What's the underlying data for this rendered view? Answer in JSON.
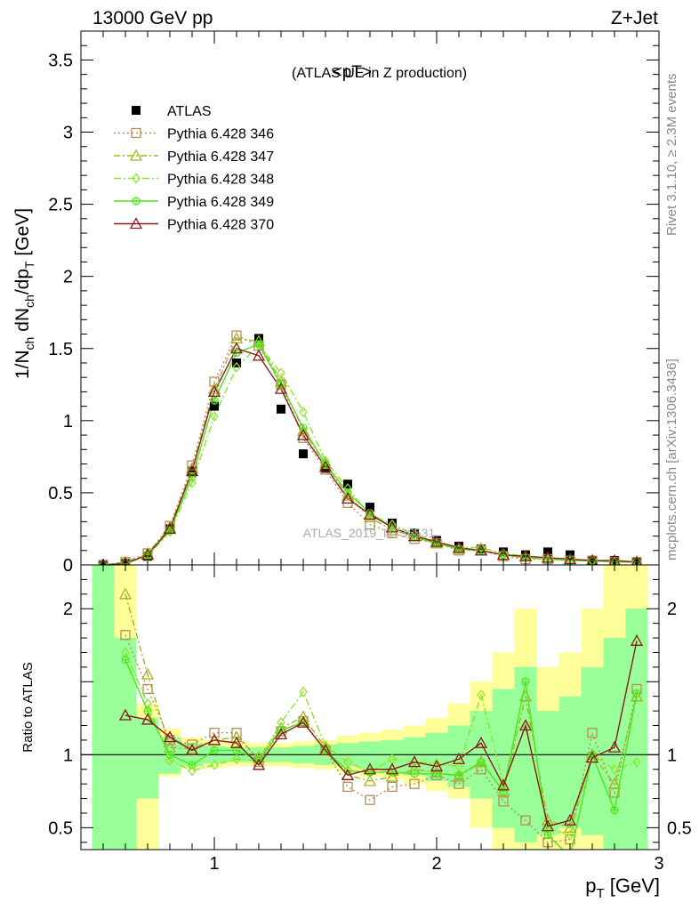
{
  "header": {
    "left": "13000 GeV pp",
    "right": "Z+Jet"
  },
  "side_labels": {
    "rivet": "Rivet 3.1.10, ≥ 2.3M events",
    "mcplots": "mcplots.cern.ch [arXiv:1306.3436]"
  },
  "watermark": "ATLAS_2019_I1736531",
  "chart_data": [
    {
      "type": "line",
      "title": "<pT>",
      "subtitle": "(ATLAS UE in Z production)",
      "xlabel": "p_T [GeV]",
      "ylabel": "1/N_ch dN_ch/dp_T [GeV]",
      "xlim": [
        0.4,
        3.0
      ],
      "ylim": [
        0,
        3.7
      ],
      "xscale": "linear",
      "grid": false,
      "legend_position": "top-left",
      "x_ticks": [
        "1",
        "2",
        "3"
      ],
      "y_ticks": [
        "0",
        "0.5",
        "1",
        "1.5",
        "2",
        "2.5",
        "3",
        "3.5"
      ],
      "x": [
        0.5,
        0.6,
        0.7,
        0.8,
        0.9,
        1.0,
        1.1,
        1.2,
        1.3,
        1.4,
        1.5,
        1.6,
        1.7,
        1.8,
        1.9,
        2.0,
        2.1,
        2.2,
        2.3,
        2.4,
        2.5,
        2.6,
        2.7,
        2.8,
        2.9
      ],
      "series": [
        {
          "name": "ATLAS",
          "color": "#000000",
          "marker": "filled-square",
          "values": [
            0.0,
            0.01,
            0.06,
            0.25,
            0.65,
            1.1,
            1.4,
            1.57,
            1.08,
            0.77,
            0.67,
            0.56,
            0.4,
            0.29,
            0.22,
            0.17,
            0.13,
            0.11,
            0.09,
            0.07,
            0.09,
            0.07,
            0.03,
            0.03,
            0.02
          ]
        },
        {
          "name": "Pythia 6.428 346",
          "color": "#b38f59",
          "marker": "open-square",
          "dash": "2,3",
          "values": [
            0.0,
            0.02,
            0.08,
            0.27,
            0.69,
            1.27,
            1.59,
            1.52,
            1.25,
            0.88,
            0.66,
            0.43,
            0.28,
            0.22,
            0.18,
            0.15,
            0.1,
            0.1,
            0.06,
            0.04,
            0.04,
            0.03,
            0.03,
            0.02,
            0.02
          ]
        },
        {
          "name": "Pythia 6.428 347",
          "color": "#a3b327",
          "marker": "open-triangle",
          "dash": "7,3,2,3",
          "values": [
            0.0,
            0.02,
            0.08,
            0.26,
            0.67,
            1.22,
            1.57,
            1.55,
            1.27,
            0.93,
            0.7,
            0.48,
            0.33,
            0.24,
            0.2,
            0.15,
            0.11,
            0.1,
            0.07,
            0.06,
            0.05,
            0.04,
            0.03,
            0.02,
            0.02
          ]
        },
        {
          "name": "Pythia 6.428 348",
          "color": "#8be625",
          "marker": "open-diamond",
          "dash": "8,3,2,3",
          "values": [
            0.0,
            0.01,
            0.06,
            0.23,
            0.57,
            1.03,
            1.37,
            1.52,
            1.33,
            1.06,
            0.72,
            0.53,
            0.35,
            0.28,
            0.21,
            0.16,
            0.12,
            0.12,
            0.08,
            0.06,
            0.05,
            0.04,
            0.03,
            0.02,
            0.02
          ]
        },
        {
          "name": "Pythia 6.428 349",
          "color": "#4de619",
          "marker": "open-circle-cross",
          "dash": "",
          "values": [
            0.0,
            0.01,
            0.07,
            0.24,
            0.61,
            1.14,
            1.47,
            1.53,
            1.25,
            0.95,
            0.7,
            0.5,
            0.36,
            0.26,
            0.19,
            0.15,
            0.11,
            0.1,
            0.07,
            0.05,
            0.04,
            0.03,
            0.03,
            0.02,
            0.02
          ]
        },
        {
          "name": "Pythia 6.428 370",
          "color": "#8c1a1a",
          "marker": "open-triangle",
          "dash": "",
          "values": [
            0.0,
            0.01,
            0.07,
            0.25,
            0.65,
            1.2,
            1.5,
            1.45,
            1.22,
            0.9,
            0.68,
            0.46,
            0.35,
            0.26,
            0.2,
            0.16,
            0.12,
            0.1,
            0.07,
            0.06,
            0.05,
            0.04,
            0.03,
            0.03,
            0.02
          ]
        }
      ]
    },
    {
      "type": "line",
      "title": "",
      "xlabel": "p_T [GeV]",
      "ylabel": "Ratio to ATLAS",
      "xlim": [
        0.4,
        3.0
      ],
      "ylim": [
        0.35,
        2.3
      ],
      "reference_line": 1,
      "grid": false,
      "x_ticks": [
        "1",
        "2",
        "3"
      ],
      "y_ticks": [
        "0.5",
        "1",
        "2"
      ],
      "x": [
        0.6,
        0.7,
        0.8,
        0.9,
        1.0,
        1.1,
        1.2,
        1.3,
        1.4,
        1.5,
        1.6,
        1.7,
        1.8,
        1.9,
        2.0,
        2.1,
        2.2,
        2.3,
        2.4,
        2.5,
        2.6,
        2.7,
        2.8,
        2.9
      ],
      "bands": {
        "x_edges": [
          0.45,
          0.55,
          0.65,
          0.75,
          0.85,
          0.95,
          1.05,
          1.15,
          1.25,
          1.35,
          1.45,
          1.55,
          1.65,
          1.75,
          1.85,
          1.95,
          2.05,
          2.15,
          2.25,
          2.35,
          2.45,
          2.55,
          2.65,
          2.75,
          2.85,
          2.95
        ],
        "yellow_lo": [
          0.3,
          0.3,
          0.3,
          0.85,
          0.9,
          0.91,
          0.92,
          0.92,
          0.92,
          0.91,
          0.9,
          0.88,
          0.85,
          0.83,
          0.8,
          0.75,
          0.7,
          0.5,
          0.3,
          0.3,
          0.3,
          0.3,
          0.3,
          0.3,
          0.3
        ],
        "yellow_hi": [
          2.3,
          2.3,
          1.35,
          1.18,
          1.12,
          1.1,
          1.09,
          1.08,
          1.08,
          1.09,
          1.1,
          1.13,
          1.15,
          1.17,
          1.2,
          1.25,
          1.35,
          1.5,
          1.7,
          2.0,
          1.6,
          1.7,
          2.0,
          2.3,
          2.3
        ],
        "green_lo": [
          0.3,
          0.3,
          0.7,
          0.87,
          0.92,
          0.94,
          0.95,
          0.95,
          0.95,
          0.94,
          0.93,
          0.92,
          0.9,
          0.88,
          0.86,
          0.82,
          0.78,
          0.7,
          0.5,
          0.4,
          0.45,
          0.5,
          0.45,
          0.35,
          0.3
        ],
        "green_hi": [
          2.3,
          1.8,
          1.25,
          1.12,
          1.08,
          1.06,
          1.05,
          1.05,
          1.05,
          1.06,
          1.07,
          1.08,
          1.09,
          1.1,
          1.12,
          1.15,
          1.2,
          1.3,
          1.45,
          1.6,
          1.3,
          1.4,
          1.6,
          1.8,
          2.0
        ]
      },
      "series": [
        {
          "name": "Pythia 6.428 346",
          "values": [
            1.82,
            1.45,
            1.1,
            1.07,
            1.15,
            1.15,
            0.95,
            1.16,
            1.23,
            1.03,
            0.78,
            0.69,
            0.78,
            0.8,
            0.86,
            0.8,
            0.9,
            0.68,
            0.55,
            0.4,
            0.42,
            1.15,
            0.74,
            1.45
          ]
        },
        {
          "name": "Pythia 6.428 347",
          "values": [
            2.1,
            1.55,
            1.05,
            1.04,
            1.1,
            1.12,
            0.98,
            1.18,
            1.26,
            1.05,
            0.86,
            0.82,
            0.85,
            0.9,
            0.88,
            0.85,
            0.95,
            0.75,
            1.4,
            0.55,
            0.5,
            1.0,
            0.8,
            1.4
          ]
        },
        {
          "name": "Pythia 6.428 348",
          "values": [
            1.7,
            1.35,
            0.96,
            0.89,
            0.93,
            0.97,
            0.96,
            1.22,
            1.43,
            1.06,
            0.95,
            0.88,
            0.97,
            0.95,
            0.94,
            0.92,
            1.41,
            0.8,
            1.2,
            0.5,
            0.45,
            1.0,
            0.9,
            0.95
          ]
        },
        {
          "name": "Pythia 6.428 349",
          "values": [
            1.65,
            1.3,
            1.0,
            0.93,
            1.03,
            1.03,
            0.96,
            1.17,
            1.22,
            1.03,
            0.89,
            0.88,
            0.88,
            0.87,
            0.87,
            0.86,
            0.95,
            0.75,
            1.5,
            0.45,
            0.3,
            1.0,
            0.62,
            1.42
          ]
        },
        {
          "name": "Pythia 6.428 370",
          "values": [
            1.27,
            1.24,
            1.12,
            1.03,
            1.1,
            1.08,
            0.93,
            1.14,
            1.22,
            1.03,
            0.86,
            0.9,
            0.9,
            0.95,
            0.92,
            0.97,
            1.08,
            0.79,
            1.2,
            0.51,
            0.55,
            0.98,
            1.05,
            1.78
          ]
        }
      ]
    }
  ]
}
